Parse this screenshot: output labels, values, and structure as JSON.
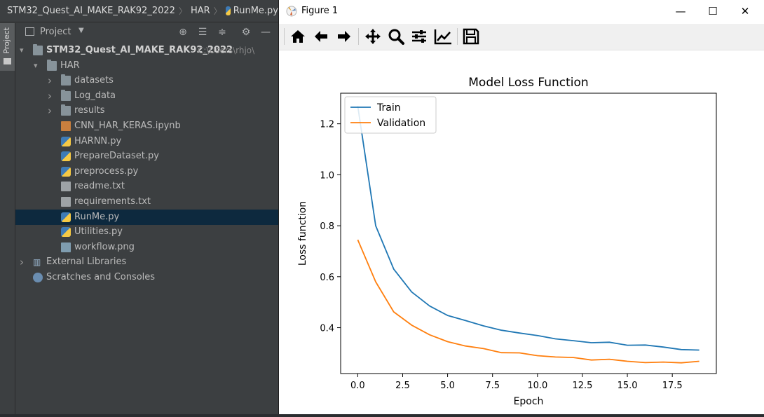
{
  "ide": {
    "breadcrumb": [
      "STM32_Quest_AI_MAKE_RAK92_2022",
      "HAR",
      "RunMe.py"
    ],
    "stripe_label": "Project",
    "panel_title": "Project",
    "tree": [
      {
        "label": "STM32_Quest_AI_MAKE_RAK92_2022",
        "suffix": "C:\\Users\\rhjo\\",
        "type": "folder",
        "depth": 0,
        "expanded": true,
        "bold": true
      },
      {
        "label": "HAR",
        "type": "folder",
        "depth": 1,
        "expanded": true
      },
      {
        "label": "datasets",
        "type": "folder",
        "depth": 2,
        "expanded": false
      },
      {
        "label": "Log_data",
        "type": "folder",
        "depth": 2,
        "expanded": false
      },
      {
        "label": "results",
        "type": "folder",
        "depth": 2,
        "expanded": false
      },
      {
        "label": "CNN_HAR_KERAS.ipynb",
        "type": "notebook",
        "depth": 2
      },
      {
        "label": "HARNN.py",
        "type": "python",
        "depth": 2
      },
      {
        "label": "PrepareDataset.py",
        "type": "python",
        "depth": 2
      },
      {
        "label": "preprocess.py",
        "type": "python",
        "depth": 2
      },
      {
        "label": "readme.txt",
        "type": "text",
        "depth": 2
      },
      {
        "label": "requirements.txt",
        "type": "text",
        "depth": 2
      },
      {
        "label": "RunMe.py",
        "type": "python",
        "depth": 2,
        "selected": true
      },
      {
        "label": "Utilities.py",
        "type": "python",
        "depth": 2
      },
      {
        "label": "workflow.png",
        "type": "image",
        "depth": 2
      },
      {
        "label": "External Libraries",
        "type": "library",
        "depth": 0,
        "expanded": false
      },
      {
        "label": "Scratches and Consoles",
        "type": "scratch",
        "depth": 0
      }
    ]
  },
  "figure_window": {
    "title": "Figure 1",
    "controls": {
      "minimize": "—",
      "maximize": "☐",
      "close": "✕"
    },
    "toolbar": [
      "home-icon",
      "back-icon",
      "forward-icon",
      "pan-icon",
      "zoom-icon",
      "configure-subplots-icon",
      "edit-axis-icon",
      "save-icon"
    ]
  },
  "chart_data": {
    "type": "line",
    "title": "Model Loss Function",
    "xlabel": "Epoch",
    "ylabel": "Loss function",
    "xlim": [
      -0.95,
      19.95
    ],
    "ylim": [
      0.22,
      1.32
    ],
    "xticks": [
      0.0,
      2.5,
      5.0,
      7.5,
      10.0,
      12.5,
      15.0,
      17.5
    ],
    "xtick_labels": [
      "0.0",
      "2.5",
      "5.0",
      "7.5",
      "10.0",
      "12.5",
      "15.0",
      "17.5"
    ],
    "yticks": [
      0.4,
      0.6,
      0.8,
      1.0,
      1.2
    ],
    "ytick_labels": [
      "0.4",
      "0.6",
      "0.8",
      "1.0",
      "1.2"
    ],
    "legend": "top-left",
    "grid": false,
    "x": [
      0,
      1,
      2,
      3,
      4,
      5,
      6,
      7,
      8,
      9,
      10,
      11,
      12,
      13,
      14,
      15,
      16,
      17,
      18,
      19
    ],
    "series": [
      {
        "name": "Train",
        "color": "#1f77b4",
        "values": [
          1.27,
          0.8,
          0.63,
          0.54,
          0.485,
          0.448,
          0.428,
          0.407,
          0.39,
          0.379,
          0.369,
          0.356,
          0.349,
          0.341,
          0.343,
          0.331,
          0.332,
          0.324,
          0.314,
          0.312
        ]
      },
      {
        "name": "Validation",
        "color": "#ff7f0e",
        "values": [
          0.745,
          0.58,
          0.462,
          0.41,
          0.372,
          0.345,
          0.328,
          0.318,
          0.302,
          0.301,
          0.29,
          0.285,
          0.283,
          0.273,
          0.276,
          0.268,
          0.263,
          0.265,
          0.262,
          0.268
        ]
      }
    ]
  }
}
